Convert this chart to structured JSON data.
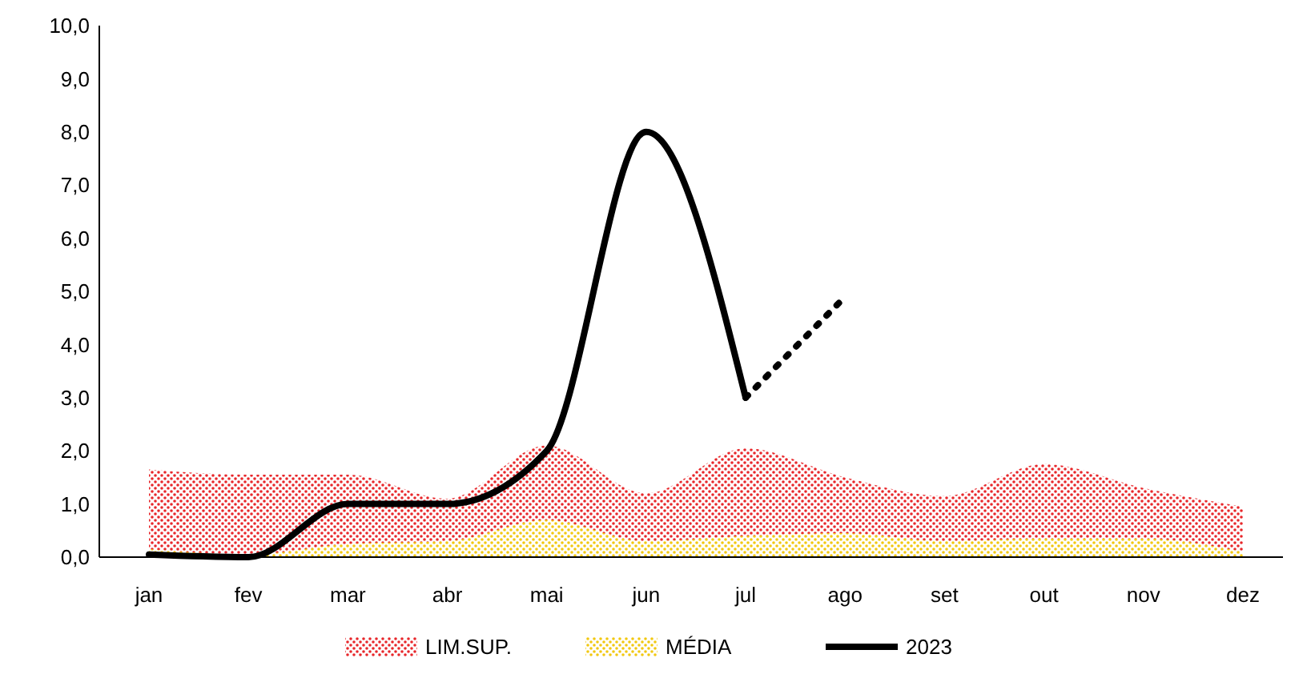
{
  "chart_data": {
    "type": "line",
    "categories": [
      "jan",
      "fev",
      "mar",
      "abr",
      "mai",
      "jun",
      "jul",
      "ago",
      "set",
      "out",
      "nov",
      "dez"
    ],
    "ylim": [
      0,
      10
    ],
    "yticks": [
      {
        "value": 0,
        "label": "0,0"
      },
      {
        "value": 1,
        "label": "1,0"
      },
      {
        "value": 2,
        "label": "2,0"
      },
      {
        "value": 3,
        "label": "3,0"
      },
      {
        "value": 4,
        "label": "4,0"
      },
      {
        "value": 5,
        "label": "5,0"
      },
      {
        "value": 6,
        "label": "6,0"
      },
      {
        "value": 7,
        "label": "7,0"
      },
      {
        "value": 8,
        "label": "8,0"
      },
      {
        "value": 9,
        "label": "9,0"
      },
      {
        "value": 10,
        "label": "10,0"
      }
    ],
    "grid": false,
    "legend": "bottom",
    "series": [
      {
        "name": "LIM.SUP.",
        "type": "area",
        "color": "#e8262a",
        "values": [
          1.65,
          1.55,
          1.55,
          1.1,
          2.1,
          1.2,
          2.05,
          1.5,
          1.15,
          1.75,
          1.3,
          0.95
        ]
      },
      {
        "name": "MÉDIA",
        "type": "area",
        "color": "#f2c80f",
        "values": [
          0.15,
          0.05,
          0.25,
          0.3,
          0.7,
          0.3,
          0.4,
          0.45,
          0.3,
          0.35,
          0.35,
          0.1
        ]
      },
      {
        "name": "2023",
        "color": "#000000",
        "line_style": "solid",
        "values": [
          0.05,
          0,
          1,
          1,
          2,
          8,
          3,
          null,
          null,
          null,
          null,
          null
        ]
      },
      {
        "color": "#000000",
        "line_style": "dotted",
        "values": [
          null,
          null,
          null,
          null,
          null,
          null,
          3,
          4.9,
          null,
          null,
          null,
          null
        ]
      }
    ]
  }
}
